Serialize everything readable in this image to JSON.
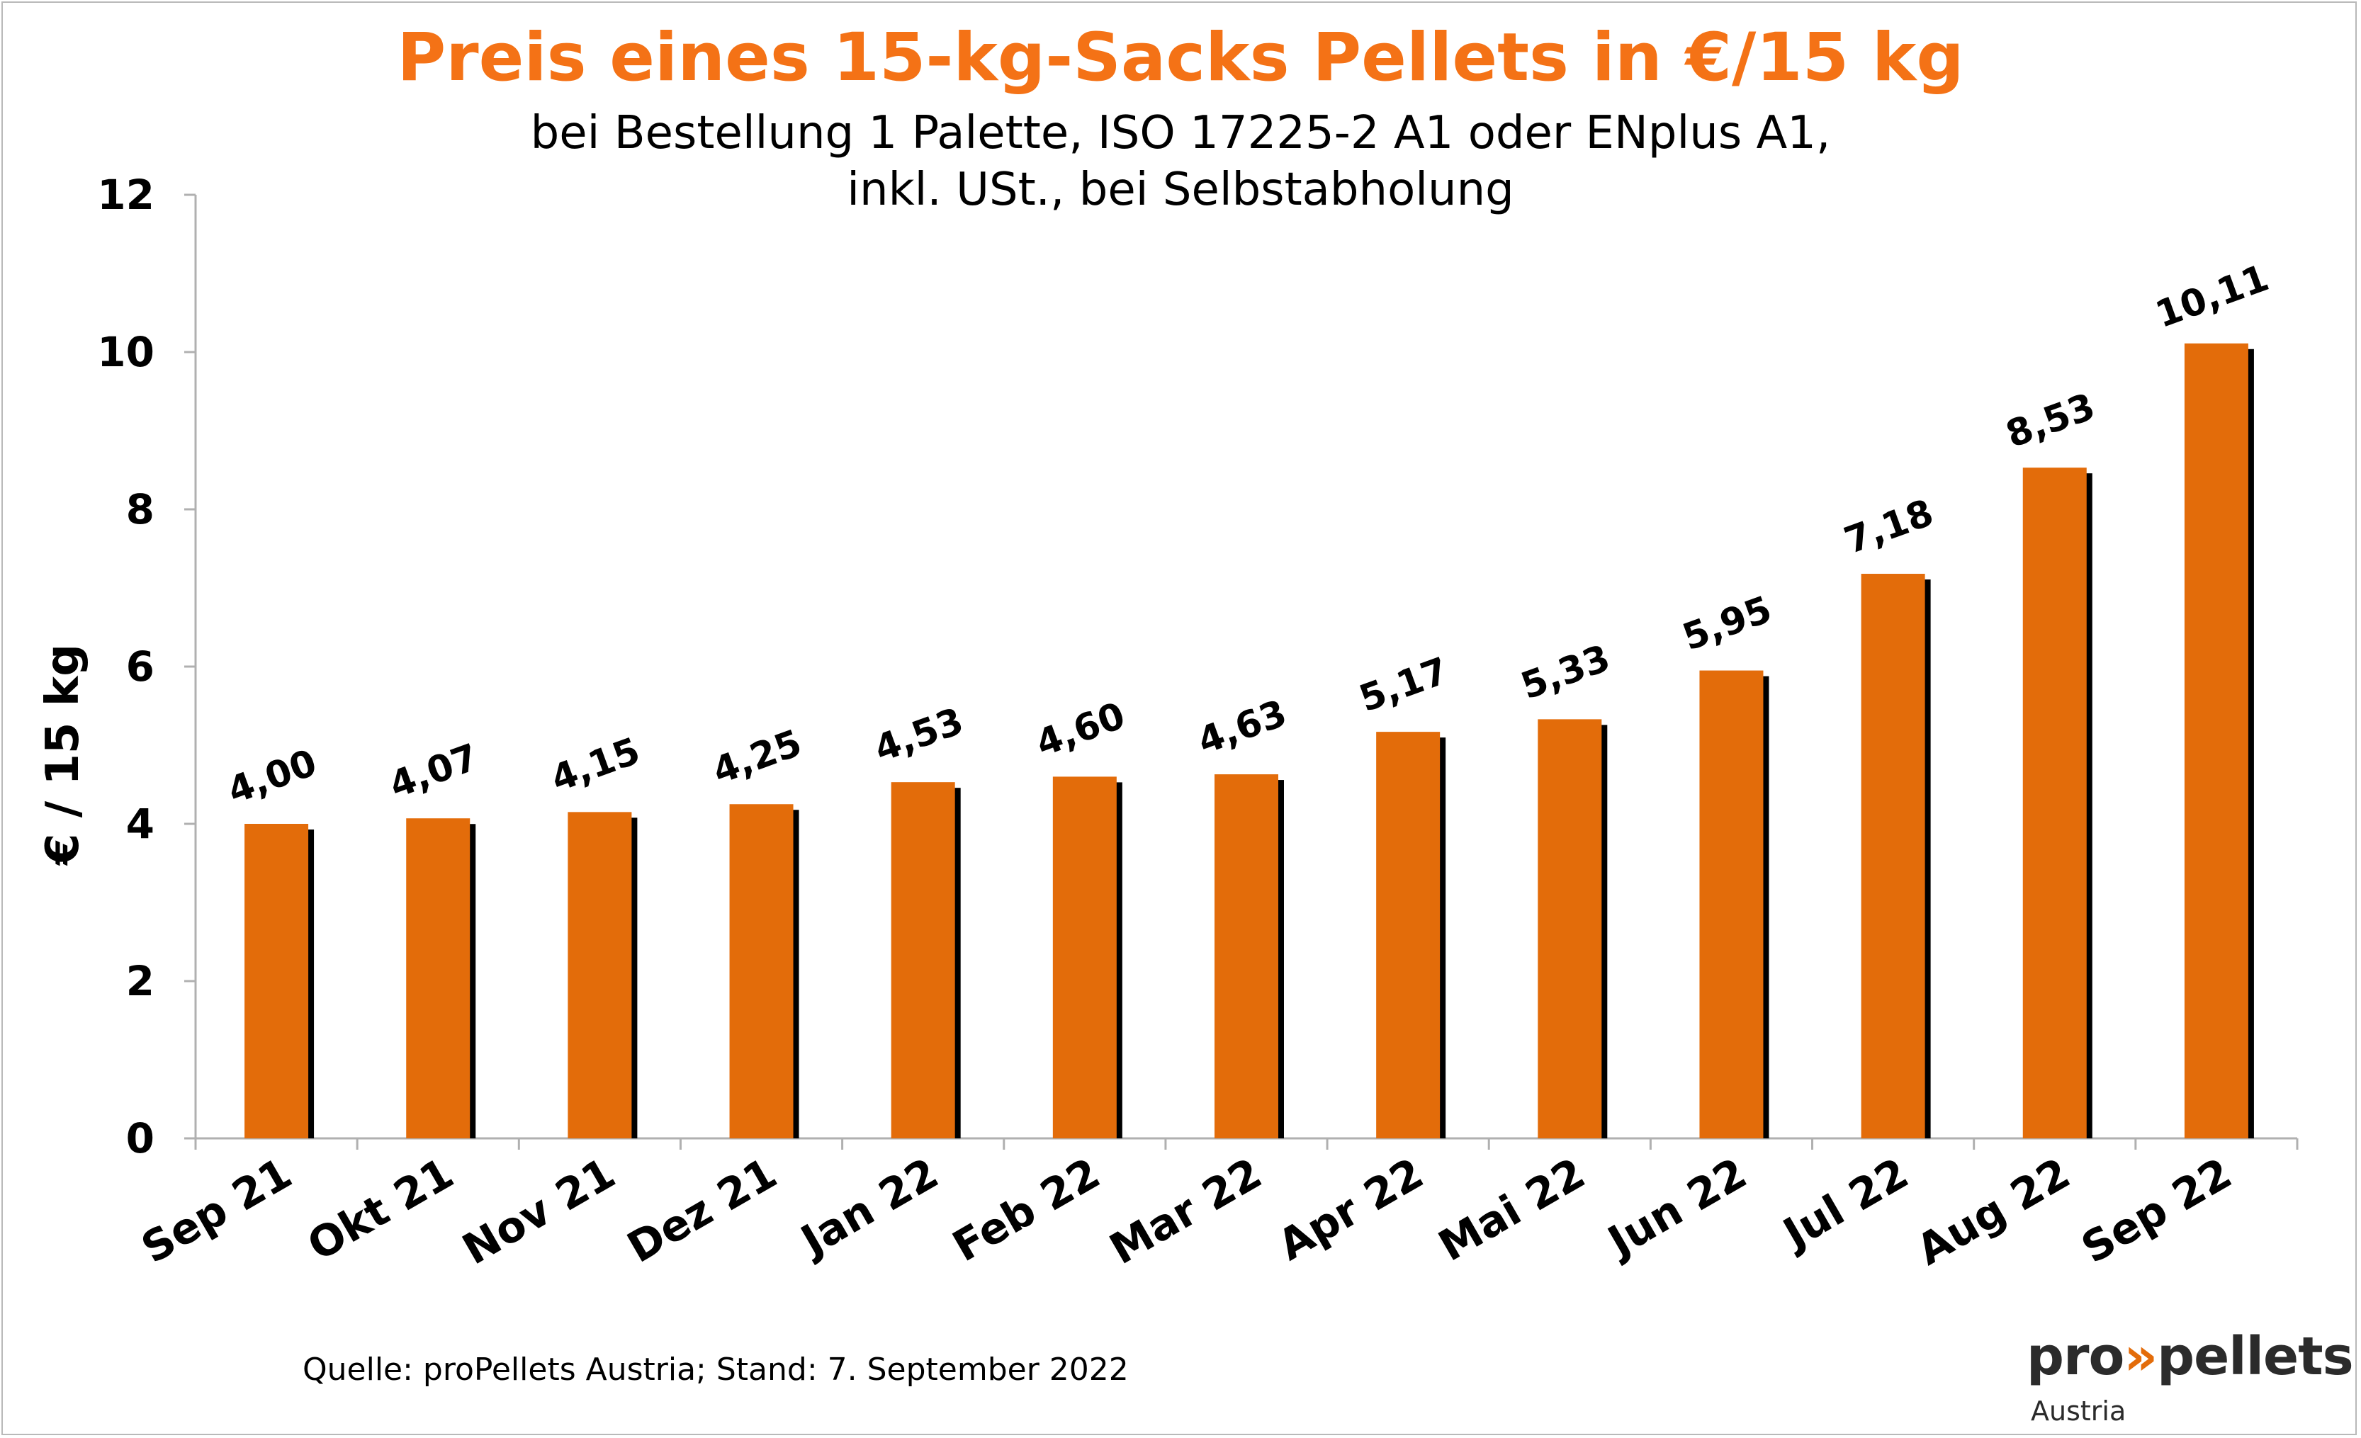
{
  "colors": {
    "bar": "#e36c0a",
    "shadow": "#000000",
    "title": "#f47216",
    "axis": "#b0b0b0",
    "text": "#000000"
  },
  "header": {
    "title": "Preis eines 15-kg-Sacks Pellets in €/15 kg",
    "subtitle_line1": "bei Bestellung 1 Palette, ISO 17225-2 A1 oder ENplus A1,",
    "subtitle_line2": "inkl. USt., bei Selbstabholung"
  },
  "footer": {
    "source": "Quelle: proPellets Austria; Stand: 7. September 2022",
    "logo_pre": "pro",
    "logo_arrow": "»",
    "logo_post": "pellets",
    "logo_sub": "Austria"
  },
  "chart_data": {
    "type": "bar",
    "title": "Preis eines 15-kg-Sacks Pellets in €/15 kg",
    "ylabel": "€ / 15 kg",
    "xlabel": "",
    "ylim": [
      0,
      12
    ],
    "yticks": [
      0,
      2,
      4,
      6,
      8,
      10,
      12
    ],
    "grid": false,
    "legend": "none",
    "categories": [
      "Sep 21",
      "Okt 21",
      "Nov 21",
      "Dez 21",
      "Jan 22",
      "Feb 22",
      "Mar 22",
      "Apr 22",
      "Mai 22",
      "Jun 22",
      "Jul 22",
      "Aug 22",
      "Sep 22"
    ],
    "values": [
      4.0,
      4.07,
      4.15,
      4.25,
      4.53,
      4.6,
      4.63,
      5.17,
      5.33,
      5.95,
      7.18,
      8.53,
      10.11
    ],
    "data_labels": [
      "4,00",
      "4,07",
      "4,15",
      "4,25",
      "4,53",
      "4,60",
      "4,63",
      "5,17",
      "5,33",
      "5,95",
      "7,18",
      "8,53",
      "10,11"
    ]
  }
}
